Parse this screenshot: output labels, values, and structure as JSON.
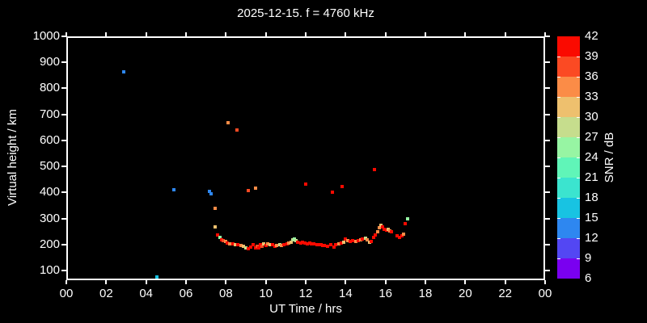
{
  "title": "2025-12-15. f = 4760 kHz",
  "axes": {
    "xlabel": "UT Time / hrs",
    "ylabel": "Virtual height / km",
    "x_tick_hours": [
      0,
      2,
      4,
      6,
      8,
      10,
      12,
      14,
      16,
      18,
      20,
      22,
      24
    ],
    "x_tick_labels": [
      "00",
      "02",
      "04",
      "06",
      "08",
      "10",
      "12",
      "14",
      "16",
      "18",
      "20",
      "22",
      "00"
    ],
    "y_tick_km": [
      1000,
      900,
      800,
      700,
      600,
      500,
      400,
      300,
      200,
      100
    ]
  },
  "colorbar": {
    "label": "SNR / dB",
    "tick_labels": [
      "42",
      "39",
      "36",
      "33",
      "30",
      "27",
      "24",
      "21",
      "18",
      "15",
      "12",
      "9",
      "6"
    ],
    "colors_top_to_bottom": [
      "#fa0a00",
      "#fb4a23",
      "#fb8c47",
      "#eec06e",
      "#c6dd8d",
      "#97f5a3",
      "#60f5b8",
      "#3be4cf",
      "#18c3e2",
      "#2e87f0",
      "#5347f3",
      "#7a00f0"
    ]
  },
  "chart_data": {
    "type": "scatter",
    "title": "2025-12-15. f = 4760 kHz",
    "xlabel": "UT Time / hrs",
    "ylabel": "Virtual height / km",
    "xlim": [
      0,
      24
    ],
    "ylim": [
      63,
      1000
    ],
    "grid": false,
    "colorbar_label": "SNR / dB",
    "snr_bins_db": [
      6,
      9,
      12,
      15,
      18,
      21,
      24,
      27,
      30,
      33,
      36,
      39,
      42
    ],
    "points_format": [
      "ut_hours",
      "virtual_height_km",
      "snr_db"
    ],
    "points": [
      [
        2.88,
        864,
        13
      ],
      [
        4.54,
        76,
        16
      ],
      [
        5.39,
        411,
        13
      ],
      [
        7.18,
        405,
        13
      ],
      [
        7.26,
        395,
        13
      ],
      [
        7.46,
        339,
        34
      ],
      [
        8.11,
        668,
        34
      ],
      [
        8.55,
        640,
        37
      ],
      [
        9.12,
        408,
        37
      ],
      [
        9.49,
        417,
        34
      ],
      [
        12.0,
        433,
        40
      ],
      [
        13.34,
        402,
        40
      ],
      [
        13.83,
        423,
        40
      ],
      [
        15.45,
        488,
        40
      ],
      [
        7.46,
        268,
        31
      ],
      [
        7.6,
        237,
        40
      ],
      [
        7.7,
        227,
        25
      ],
      [
        7.78,
        218,
        40
      ],
      [
        7.88,
        215,
        37
      ],
      [
        7.98,
        212,
        34
      ],
      [
        8.07,
        206,
        40
      ],
      [
        8.2,
        203,
        34
      ],
      [
        8.35,
        203,
        40
      ],
      [
        8.47,
        200,
        31
      ],
      [
        8.6,
        200,
        40
      ],
      [
        8.75,
        196,
        34
      ],
      [
        8.88,
        193,
        31
      ],
      [
        9.0,
        187,
        28
      ],
      [
        9.12,
        184,
        40
      ],
      [
        9.25,
        190,
        40
      ],
      [
        9.35,
        199,
        40
      ],
      [
        9.5,
        187,
        40
      ],
      [
        9.57,
        193,
        37
      ],
      [
        9.65,
        187,
        40
      ],
      [
        9.72,
        199,
        40
      ],
      [
        9.8,
        193,
        37
      ],
      [
        9.9,
        202,
        31
      ],
      [
        10.0,
        196,
        40
      ],
      [
        10.1,
        202,
        34
      ],
      [
        10.2,
        199,
        31
      ],
      [
        10.35,
        199,
        40
      ],
      [
        10.45,
        193,
        40
      ],
      [
        10.55,
        196,
        34
      ],
      [
        10.7,
        199,
        28
      ],
      [
        10.8,
        196,
        34
      ],
      [
        10.9,
        199,
        40
      ],
      [
        11.05,
        202,
        40
      ],
      [
        11.15,
        205,
        34
      ],
      [
        11.25,
        208,
        31
      ],
      [
        11.35,
        217,
        28
      ],
      [
        11.42,
        220,
        25
      ],
      [
        11.5,
        214,
        28
      ],
      [
        11.6,
        208,
        40
      ],
      [
        11.75,
        205,
        40
      ],
      [
        11.85,
        208,
        40
      ],
      [
        11.95,
        205,
        40
      ],
      [
        12.1,
        202,
        40
      ],
      [
        12.2,
        205,
        40
      ],
      [
        12.3,
        202,
        40
      ],
      [
        12.42,
        202,
        40
      ],
      [
        12.55,
        199,
        40
      ],
      [
        12.65,
        198,
        40
      ],
      [
        12.75,
        198,
        40
      ],
      [
        12.85,
        197,
        40
      ],
      [
        12.95,
        196,
        40
      ],
      [
        13.1,
        193,
        40
      ],
      [
        13.25,
        199,
        40
      ],
      [
        13.4,
        190,
        40
      ],
      [
        13.52,
        199,
        40
      ],
      [
        13.65,
        202,
        34
      ],
      [
        13.78,
        205,
        40
      ],
      [
        13.9,
        208,
        31
      ],
      [
        14.0,
        221,
        40
      ],
      [
        14.12,
        215,
        34
      ],
      [
        14.22,
        212,
        40
      ],
      [
        14.35,
        215,
        40
      ],
      [
        14.5,
        212,
        34
      ],
      [
        14.62,
        215,
        40
      ],
      [
        14.75,
        218,
        34
      ],
      [
        14.85,
        221,
        40
      ],
      [
        15.0,
        224,
        28
      ],
      [
        15.1,
        218,
        34
      ],
      [
        15.2,
        209,
        31
      ],
      [
        15.3,
        212,
        40
      ],
      [
        15.4,
        227,
        40
      ],
      [
        15.5,
        236,
        40
      ],
      [
        15.6,
        249,
        34
      ],
      [
        15.7,
        264,
        34
      ],
      [
        15.78,
        273,
        31
      ],
      [
        15.85,
        267,
        40
      ],
      [
        15.95,
        258,
        40
      ],
      [
        16.05,
        255,
        40
      ],
      [
        16.12,
        258,
        31
      ],
      [
        16.2,
        252,
        34
      ],
      [
        16.3,
        249,
        40
      ],
      [
        16.6,
        234,
        40
      ],
      [
        16.72,
        227,
        40
      ],
      [
        16.82,
        234,
        40
      ],
      [
        16.9,
        240,
        34
      ],
      [
        17.0,
        280,
        40
      ],
      [
        17.1,
        299,
        25
      ]
    ]
  }
}
